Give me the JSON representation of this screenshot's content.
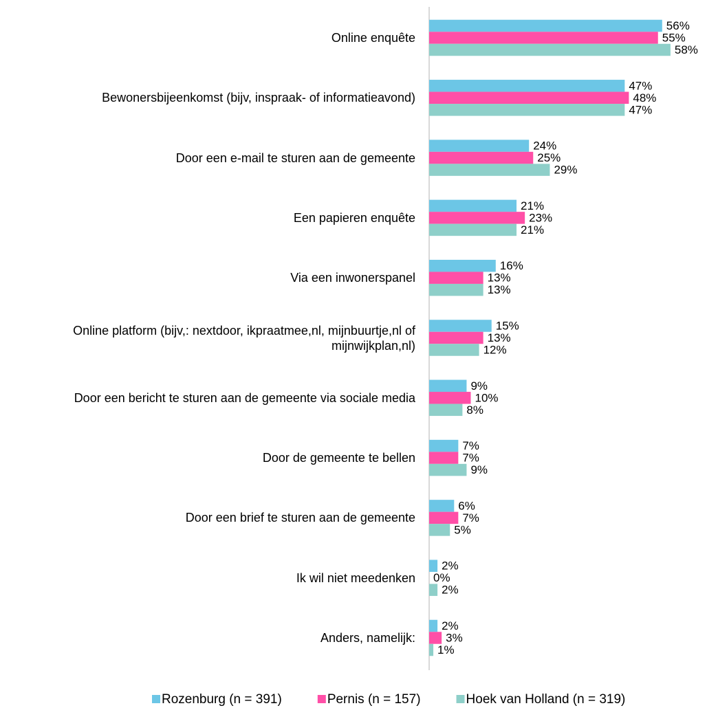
{
  "chart_data": {
    "type": "bar",
    "orientation": "horizontal",
    "categories": [
      "Online enquête",
      "Bewonersbijeenkomst (bijv, inspraak- of informatieavond)",
      "Door een e-mail te sturen aan de gemeente",
      "Een papieren enquête",
      "Via een inwonerspanel",
      "Online platform (bijv,: nextdoor, ikpraatmee,nl, mijnbuurtje,nl of mijnwijkplan,nl)",
      "Door een bericht te sturen aan de gemeente via sociale media",
      "Door de gemeente te bellen",
      "Door een brief te sturen aan de gemeente",
      "Ik wil niet meedenken",
      "Anders, namelijk:"
    ],
    "series": [
      {
        "name": "Rozenburg (n = 391)",
        "color": "#6cc6e6",
        "values": [
          56,
          47,
          24,
          21,
          16,
          15,
          9,
          7,
          6,
          2,
          2
        ],
        "value_labels": [
          "56%",
          "47%",
          "24%",
          "21%",
          "16%",
          "15%",
          "9%",
          "7%",
          "6%",
          "2%",
          "2%"
        ]
      },
      {
        "name": "Pernis (n = 157)",
        "color": "#ff4fa7",
        "values": [
          55,
          48,
          25,
          23,
          13,
          13,
          10,
          7,
          7,
          0,
          3
        ],
        "value_labels": [
          "55%",
          "48%",
          "25%",
          "23%",
          "13%",
          "13%",
          "10%",
          "7%",
          "7%",
          "0%",
          "3%"
        ]
      },
      {
        "name": "Hoek van Holland (n = 319)",
        "color": "#8ecfc9",
        "values": [
          58,
          47,
          29,
          21,
          13,
          12,
          8,
          9,
          5,
          2,
          1
        ],
        "value_labels": [
          "58%",
          "47%",
          "29%",
          "21%",
          "13%",
          "12%",
          "8%",
          "9%",
          "5%",
          "2%",
          "1%"
        ]
      }
    ],
    "legend": "bottom"
  }
}
